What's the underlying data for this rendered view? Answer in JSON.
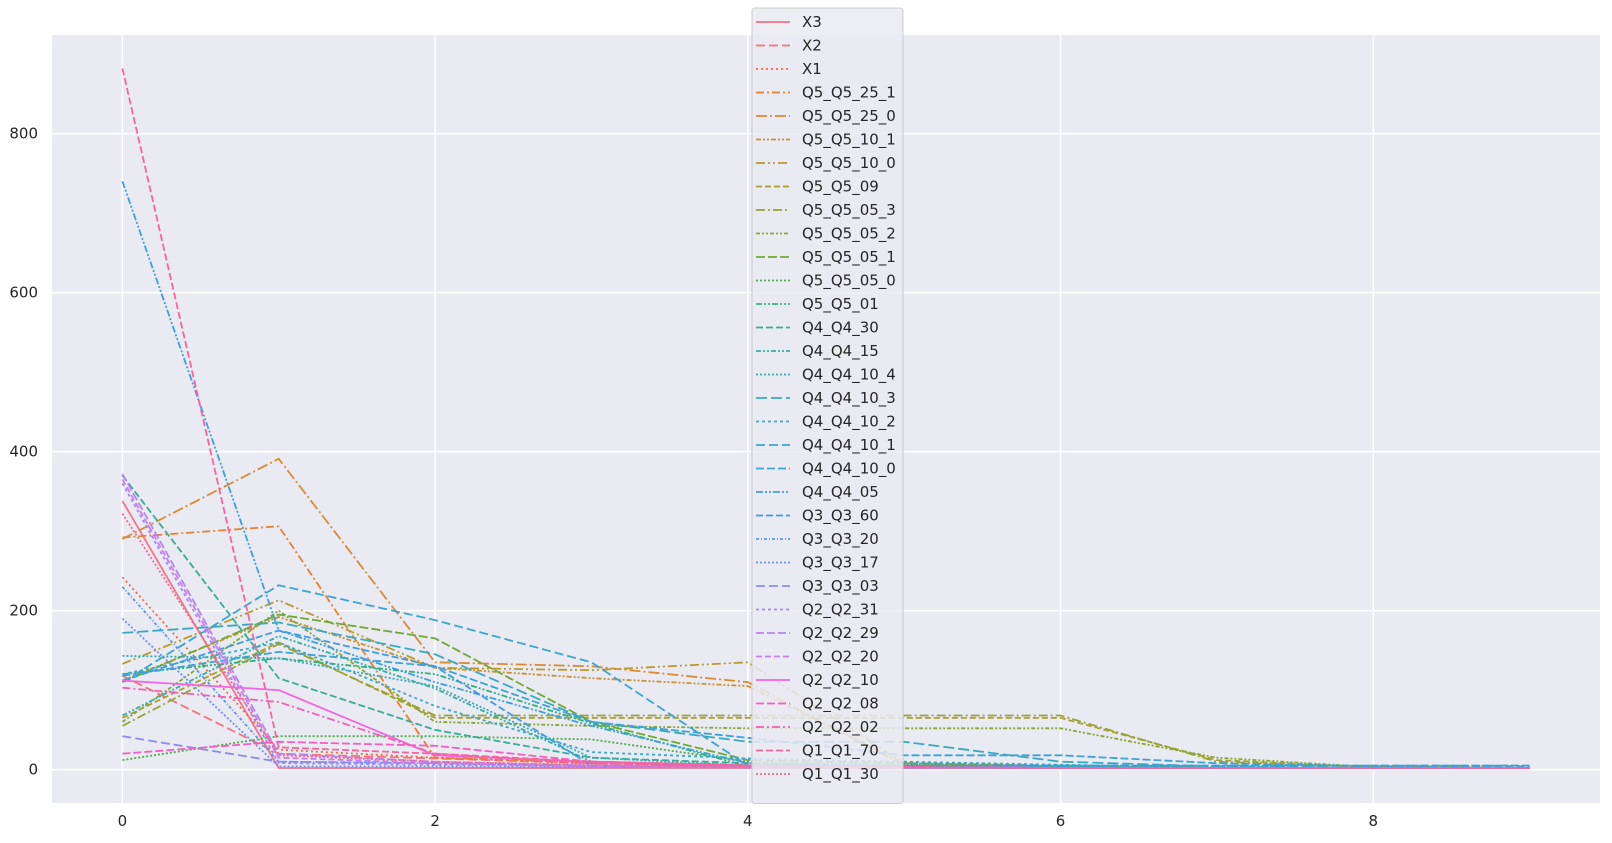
{
  "chart_data": {
    "type": "line",
    "title": "",
    "xlabel": "",
    "ylabel": "",
    "xlim": [
      -0.45,
      9.45
    ],
    "ylim": [
      -42,
      924
    ],
    "x_ticks": [
      0,
      2,
      4,
      6,
      8
    ],
    "y_ticks": [
      0,
      200,
      400,
      600,
      800
    ],
    "grid": true,
    "legend_position": "top-center",
    "x": [
      0,
      1,
      2,
      3,
      4,
      5,
      6,
      7,
      8,
      9
    ],
    "series": [
      {
        "name": "X3",
        "color": "#f77189",
        "dash": "",
        "values": [
          338,
          2,
          2,
          2,
          2,
          2,
          2,
          2,
          2,
          2
        ]
      },
      {
        "name": "X2",
        "color": "#f5737a",
        "dash": "9 4",
        "values": [
          118,
          20,
          14,
          8,
          4,
          3,
          2,
          2,
          2,
          2
        ]
      },
      {
        "name": "X1",
        "color": "#f06b3d",
        "dash": "2 3",
        "values": [
          242,
          25,
          15,
          8,
          5,
          3,
          2,
          2,
          2,
          2
        ]
      },
      {
        "name": "Q5_Q5_25_1",
        "color": "#e8802d",
        "dash": "8 3 2 3",
        "values": [
          292,
          306,
          15,
          10,
          6,
          4,
          3,
          2,
          2,
          2
        ]
      },
      {
        "name": "Q5_Q5_25_0",
        "color": "#d98a33",
        "dash": "11 3 2 3",
        "values": [
          290,
          391,
          135,
          130,
          110,
          5,
          3,
          2,
          2,
          2
        ]
      },
      {
        "name": "Q5_Q5_10_1",
        "color": "#c9922f",
        "dash": "5 2 2 2 2 2",
        "values": [
          112,
          192,
          128,
          115,
          105,
          8,
          4,
          2,
          2,
          2
        ]
      },
      {
        "name": "Q5_Q5_10_0",
        "color": "#b89a2e",
        "dash": "9 3 2 3 2 3",
        "values": [
          133,
          213,
          128,
          125,
          135,
          8,
          4,
          2,
          2,
          2
        ]
      },
      {
        "name": "Q5_Q5_09",
        "color": "#a8a030",
        "dash": "6 3",
        "values": [
          65,
          160,
          65,
          65,
          65,
          65,
          65,
          12,
          3,
          2
        ]
      },
      {
        "name": "Q5_Q5_05_3",
        "color": "#97a431",
        "dash": "9 3 2 3",
        "values": [
          55,
          158,
          68,
          68,
          68,
          68,
          68,
          10,
          3,
          2
        ]
      },
      {
        "name": "Q5_Q5_05_2",
        "color": "#86a832",
        "dash": "4 2 2 2 2 2",
        "values": [
          60,
          200,
          60,
          55,
          52,
          52,
          52,
          15,
          3,
          2
        ]
      },
      {
        "name": "Q5_Q5_05_1",
        "color": "#6ea934",
        "dash": "9 3",
        "values": [
          110,
          195,
          165,
          60,
          12,
          8,
          5,
          2,
          2,
          2
        ]
      },
      {
        "name": "Q5_Q5_05_0",
        "color": "#4fac4c",
        "dash": "2 2",
        "values": [
          12,
          42,
          42,
          38,
          10,
          6,
          4,
          2,
          2,
          2
        ]
      },
      {
        "name": "Q5_Q5_01",
        "color": "#33b07a",
        "dash": "6 2 2 2 2 2",
        "values": [
          120,
          140,
          120,
          58,
          4,
          3,
          2,
          2,
          2,
          2
        ]
      },
      {
        "name": "Q4_Q4_30",
        "color": "#35ae93",
        "dash": "7 3",
        "values": [
          370,
          115,
          50,
          15,
          8,
          4,
          3,
          2,
          2,
          2
        ]
      },
      {
        "name": "Q4_Q4_15",
        "color": "#36ada4",
        "dash": "5 2 2 2 2 2",
        "values": [
          68,
          168,
          102,
          10,
          5,
          3,
          2,
          2,
          2,
          2
        ]
      },
      {
        "name": "Q4_Q4_10_4",
        "color": "#37abb4",
        "dash": "2 2",
        "values": [
          143,
          140,
          105,
          15,
          5,
          3,
          2,
          2,
          2,
          2
        ]
      },
      {
        "name": "Q4_Q4_10_3",
        "color": "#38aabf",
        "dash": "11 4",
        "values": [
          172,
          185,
          145,
          60,
          35,
          35,
          10,
          4,
          2,
          2
        ]
      },
      {
        "name": "Q4_Q4_10_2",
        "color": "#39a8c9",
        "dash": "3 3",
        "values": [
          120,
          160,
          80,
          22,
          14,
          10,
          6,
          3,
          2,
          2
        ]
      },
      {
        "name": "Q4_Q4_10_1",
        "color": "#3aa6cf",
        "dash": "9 4",
        "values": [
          110,
          232,
          188,
          135,
          5,
          5,
          5,
          5,
          5,
          5
        ]
      },
      {
        "name": "Q4_Q4_10_0",
        "color": "#3ba3d6",
        "dash": "8 3",
        "values": [
          118,
          148,
          130,
          60,
          40,
          18,
          18,
          8,
          4,
          4
        ]
      },
      {
        "name": "Q4_Q4_05",
        "color": "#3ca0de",
        "dash": "7 2 2 2 2 2",
        "values": [
          740,
          175,
          110,
          55,
          8,
          5,
          3,
          2,
          2,
          2
        ]
      },
      {
        "name": "Q3_Q3_60",
        "color": "#3d9ce5",
        "dash": "7 3",
        "values": [
          112,
          175,
          130,
          5,
          5,
          5,
          5,
          5,
          5,
          5
        ]
      },
      {
        "name": "Q3_Q3_20",
        "color": "#5696ea",
        "dash": "3 2 1 2",
        "values": [
          230,
          10,
          8,
          5,
          3,
          3,
          2,
          2,
          2,
          2
        ]
      },
      {
        "name": "Q3_Q3_17",
        "color": "#6e91ef",
        "dash": "2 2",
        "values": [
          190,
          4,
          4,
          3,
          3,
          2,
          2,
          2,
          2,
          2
        ]
      },
      {
        "name": "Q3_Q3_03",
        "color": "#8b8cf1",
        "dash": "9 4",
        "values": [
          42,
          10,
          8,
          4,
          3,
          3,
          2,
          2,
          2,
          2
        ]
      },
      {
        "name": "Q2_Q2_31",
        "color": "#a387f3",
        "dash": "3 3",
        "values": [
          360,
          8,
          6,
          4,
          3,
          3,
          2,
          2,
          2,
          2
        ]
      },
      {
        "name": "Q2_Q2_29",
        "color": "#b882f4",
        "dash": "8 3",
        "values": [
          372,
          20,
          10,
          5,
          3,
          3,
          2,
          2,
          2,
          2
        ]
      },
      {
        "name": "Q2_Q2_20",
        "color": "#cb7bf2",
        "dash": "6 3",
        "values": [
          365,
          15,
          8,
          4,
          3,
          3,
          2,
          2,
          2,
          2
        ]
      },
      {
        "name": "Q2_Q2_10",
        "color": "#f363e3",
        "dash": "",
        "values": [
          112,
          100,
          18,
          10,
          5,
          3,
          2,
          2,
          2,
          2
        ]
      },
      {
        "name": "Q2_Q2_08",
        "color": "#f35ec2",
        "dash": "8 3",
        "values": [
          20,
          35,
          30,
          10,
          5,
          3,
          2,
          2,
          2,
          2
        ]
      },
      {
        "name": "Q2_Q2_02",
        "color": "#f460b0",
        "dash": "8 3 2 3",
        "values": [
          103,
          85,
          20,
          8,
          5,
          3,
          2,
          2,
          2,
          2
        ]
      },
      {
        "name": "Q1_Q1_70",
        "color": "#f5659c",
        "dash": "7 3",
        "values": [
          882,
          28,
          20,
          10,
          5,
          3,
          2,
          2,
          2,
          2
        ]
      },
      {
        "name": "Q1_Q1_30",
        "color": "#f56a8a",
        "dash": "2 2",
        "values": [
          322,
          18,
          10,
          6,
          3,
          3,
          2,
          2,
          2,
          2
        ]
      }
    ]
  },
  "style": {
    "plot_background": "#eaeaf2",
    "grid_color": "#ffffff",
    "legend_background": "#eaeaf2",
    "legend_border": "#cccccc",
    "text_color": "#262626"
  }
}
